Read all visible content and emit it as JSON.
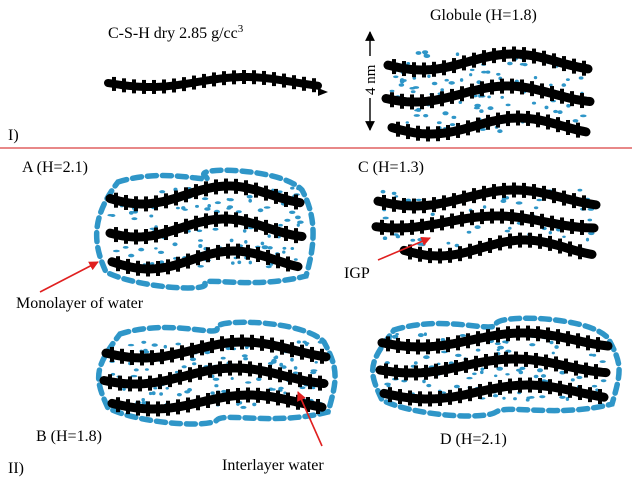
{
  "section_one": {
    "roman": "I)",
    "dry_label": "C-S-H dry 2.85 g/cc",
    "dry_label_sup": "3",
    "globule_label": "Globule (H=1.8)",
    "scale_label": "4 nm"
  },
  "section_two": {
    "roman": "II)",
    "panel_a": "A (H=2.1)",
    "panel_b": "B (H=1.8)",
    "panel_c": "C (H=1.3)",
    "panel_d": "D (H=2.1)",
    "callout_monolayer": "Monolayer of water",
    "callout_igp": "IGP",
    "callout_interlayer": "Interlayer water"
  },
  "colors": {
    "sheet": "#000000",
    "water": "#2f96c8",
    "divider": "#e06060",
    "arrow": "#e02020"
  }
}
